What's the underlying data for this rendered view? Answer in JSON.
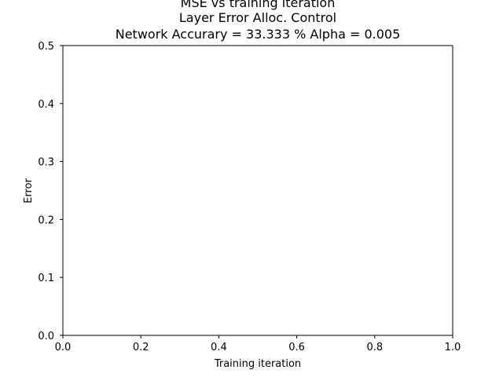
{
  "chart_data": {
    "type": "line",
    "title_lines": [
      "MSE vs training iteration",
      "Layer Error Alloc. Control",
      "Network Accurary = 33.333 % Alpha =  0.005"
    ],
    "xlabel": "Training iteration",
    "ylabel": "Error",
    "xlim": [
      0.0,
      1.0
    ],
    "ylim": [
      0.0,
      0.5
    ],
    "x_ticks": [
      "0.0",
      "0.2",
      "0.4",
      "0.6",
      "0.8",
      "1.0"
    ],
    "y_ticks": [
      "0.0",
      "0.1",
      "0.2",
      "0.3",
      "0.4",
      "0.5"
    ],
    "grid": false,
    "series": []
  }
}
